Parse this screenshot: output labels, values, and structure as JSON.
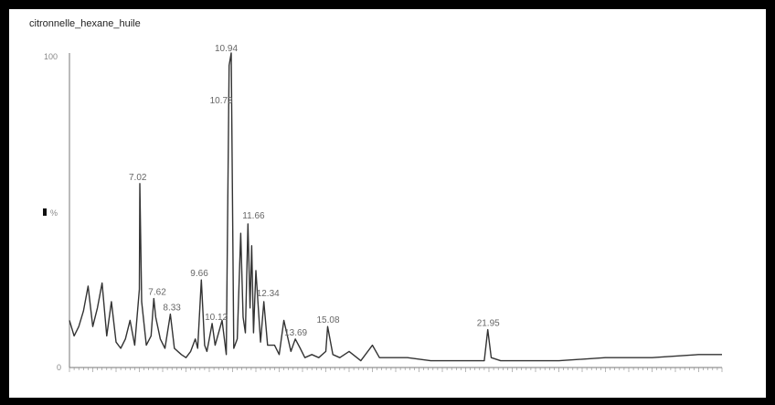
{
  "chart_data": {
    "type": "line",
    "title": "citronnelle_hexane_huile",
    "ylabel": "%",
    "y_ticks": [
      "100",
      "0"
    ],
    "ylim": [
      0,
      100
    ],
    "peak_labels": [
      "7.02",
      "7.62",
      "8.33",
      "9.66",
      "10.12",
      "10.73",
      "10.94",
      "11.66",
      "12.34",
      "13.69",
      "15.08",
      "21.95"
    ],
    "series": [
      {
        "x": [
          4.0,
          4.2,
          4.4,
          4.6,
          4.8,
          5.0,
          5.2,
          5.4,
          5.6,
          5.8,
          6.0,
          6.2,
          6.4,
          6.6,
          6.8,
          7.0,
          7.02,
          7.1,
          7.3,
          7.5,
          7.62,
          7.7,
          7.9,
          8.1,
          8.33,
          8.5,
          8.8,
          9.0,
          9.2,
          9.4,
          9.5,
          9.66,
          9.8,
          9.9,
          10.0,
          10.12,
          10.25,
          10.4,
          10.55,
          10.73,
          10.85,
          10.94,
          11.05,
          11.2,
          11.35,
          11.45,
          11.55,
          11.66,
          11.75,
          11.82,
          11.9,
          12.0,
          12.2,
          12.34,
          12.5,
          12.8,
          13.0,
          13.2,
          13.5,
          13.69,
          13.9,
          14.1,
          14.4,
          14.7,
          15.0,
          15.08,
          15.3,
          15.6,
          16.0,
          16.5,
          17.0,
          17.3,
          17.7,
          18.5,
          19.5,
          20.5,
          21.5,
          21.8,
          21.95,
          22.1,
          22.5,
          23.5,
          25.0,
          27.0,
          29.0,
          31.0,
          32.0
        ],
        "y": [
          14,
          9,
          12,
          17,
          25,
          12,
          18,
          26,
          9,
          20,
          7,
          5,
          8,
          14,
          6,
          24,
          58,
          20,
          6,
          9,
          21,
          15,
          8,
          5,
          16,
          5,
          3,
          2,
          4,
          8,
          5,
          27,
          6,
          4,
          8,
          13,
          6,
          10,
          14,
          3,
          96,
          100,
          5,
          8,
          42,
          15,
          10,
          45,
          18,
          38,
          10,
          30,
          7,
          20,
          6,
          6,
          3,
          14,
          4,
          8,
          5,
          2,
          3,
          2,
          4,
          12,
          3,
          2,
          4,
          1,
          6,
          2,
          2,
          2,
          1,
          1,
          1,
          1,
          11,
          2,
          1,
          1,
          1,
          2,
          2,
          3,
          3
        ]
      }
    ],
    "grid": false,
    "legend": "none"
  }
}
